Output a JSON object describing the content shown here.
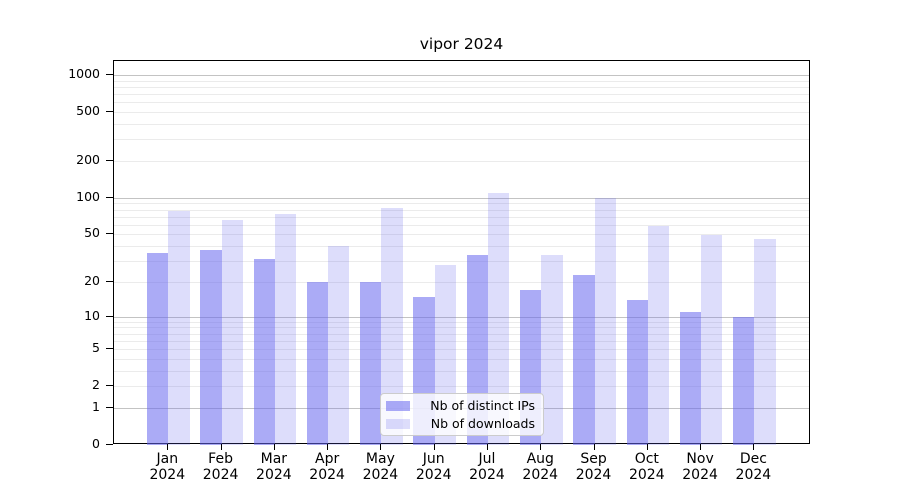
{
  "title": "vipor 2024",
  "colors": {
    "bar_ips": "rgba(102,102,238,0.55)",
    "bar_downloads": "rgba(102,102,238,0.22)",
    "bar_ips_on_white": "#ababf5",
    "bar_downloads_on_white": "#ddddfb",
    "grid_major": "#c3c3c3",
    "grid_minor": "#ebebeb",
    "axis": "#000000"
  },
  "legend": {
    "items": [
      {
        "label": "Nb of distinct IPs",
        "color": "rgba(102,102,238,0.55)"
      },
      {
        "label": "Nb of downloads",
        "color": "rgba(102,102,238,0.22)"
      }
    ]
  },
  "chart_data": {
    "type": "bar",
    "title": "vipor 2024",
    "categories": [
      "Jan 2024",
      "Feb 2024",
      "Mar 2024",
      "Apr 2024",
      "May 2024",
      "Jun 2024",
      "Jul 2024",
      "Aug 2024",
      "Sep 2024",
      "Oct 2024",
      "Nov 2024",
      "Dec 2024"
    ],
    "series": [
      {
        "name": "Nb of distinct IPs",
        "color": "rgba(102,102,238,0.55)",
        "values": [
          35,
          37,
          31,
          20,
          20,
          15,
          34,
          17,
          23,
          14,
          11,
          10
        ]
      },
      {
        "name": "Nb of downloads",
        "color": "rgba(102,102,238,0.22)",
        "values": [
          78,
          66,
          73,
          40,
          83,
          28,
          110,
          34,
          100,
          59,
          49,
          46
        ]
      }
    ],
    "xlabel": "",
    "ylabel": "",
    "yscale": "log10(value+1)",
    "yticks": [
      0,
      1,
      2,
      5,
      10,
      20,
      50,
      100,
      200,
      500,
      1000
    ],
    "minor_gridlines": [
      3,
      4,
      6,
      7,
      8,
      9,
      30,
      40,
      60,
      70,
      80,
      90,
      300,
      400,
      600,
      700,
      800,
      900
    ],
    "major_gridlines": [
      1,
      10,
      100,
      1000
    ],
    "ylim": [
      0,
      1300
    ],
    "grid": "horizontal",
    "legend_position": "inside lower-center"
  }
}
